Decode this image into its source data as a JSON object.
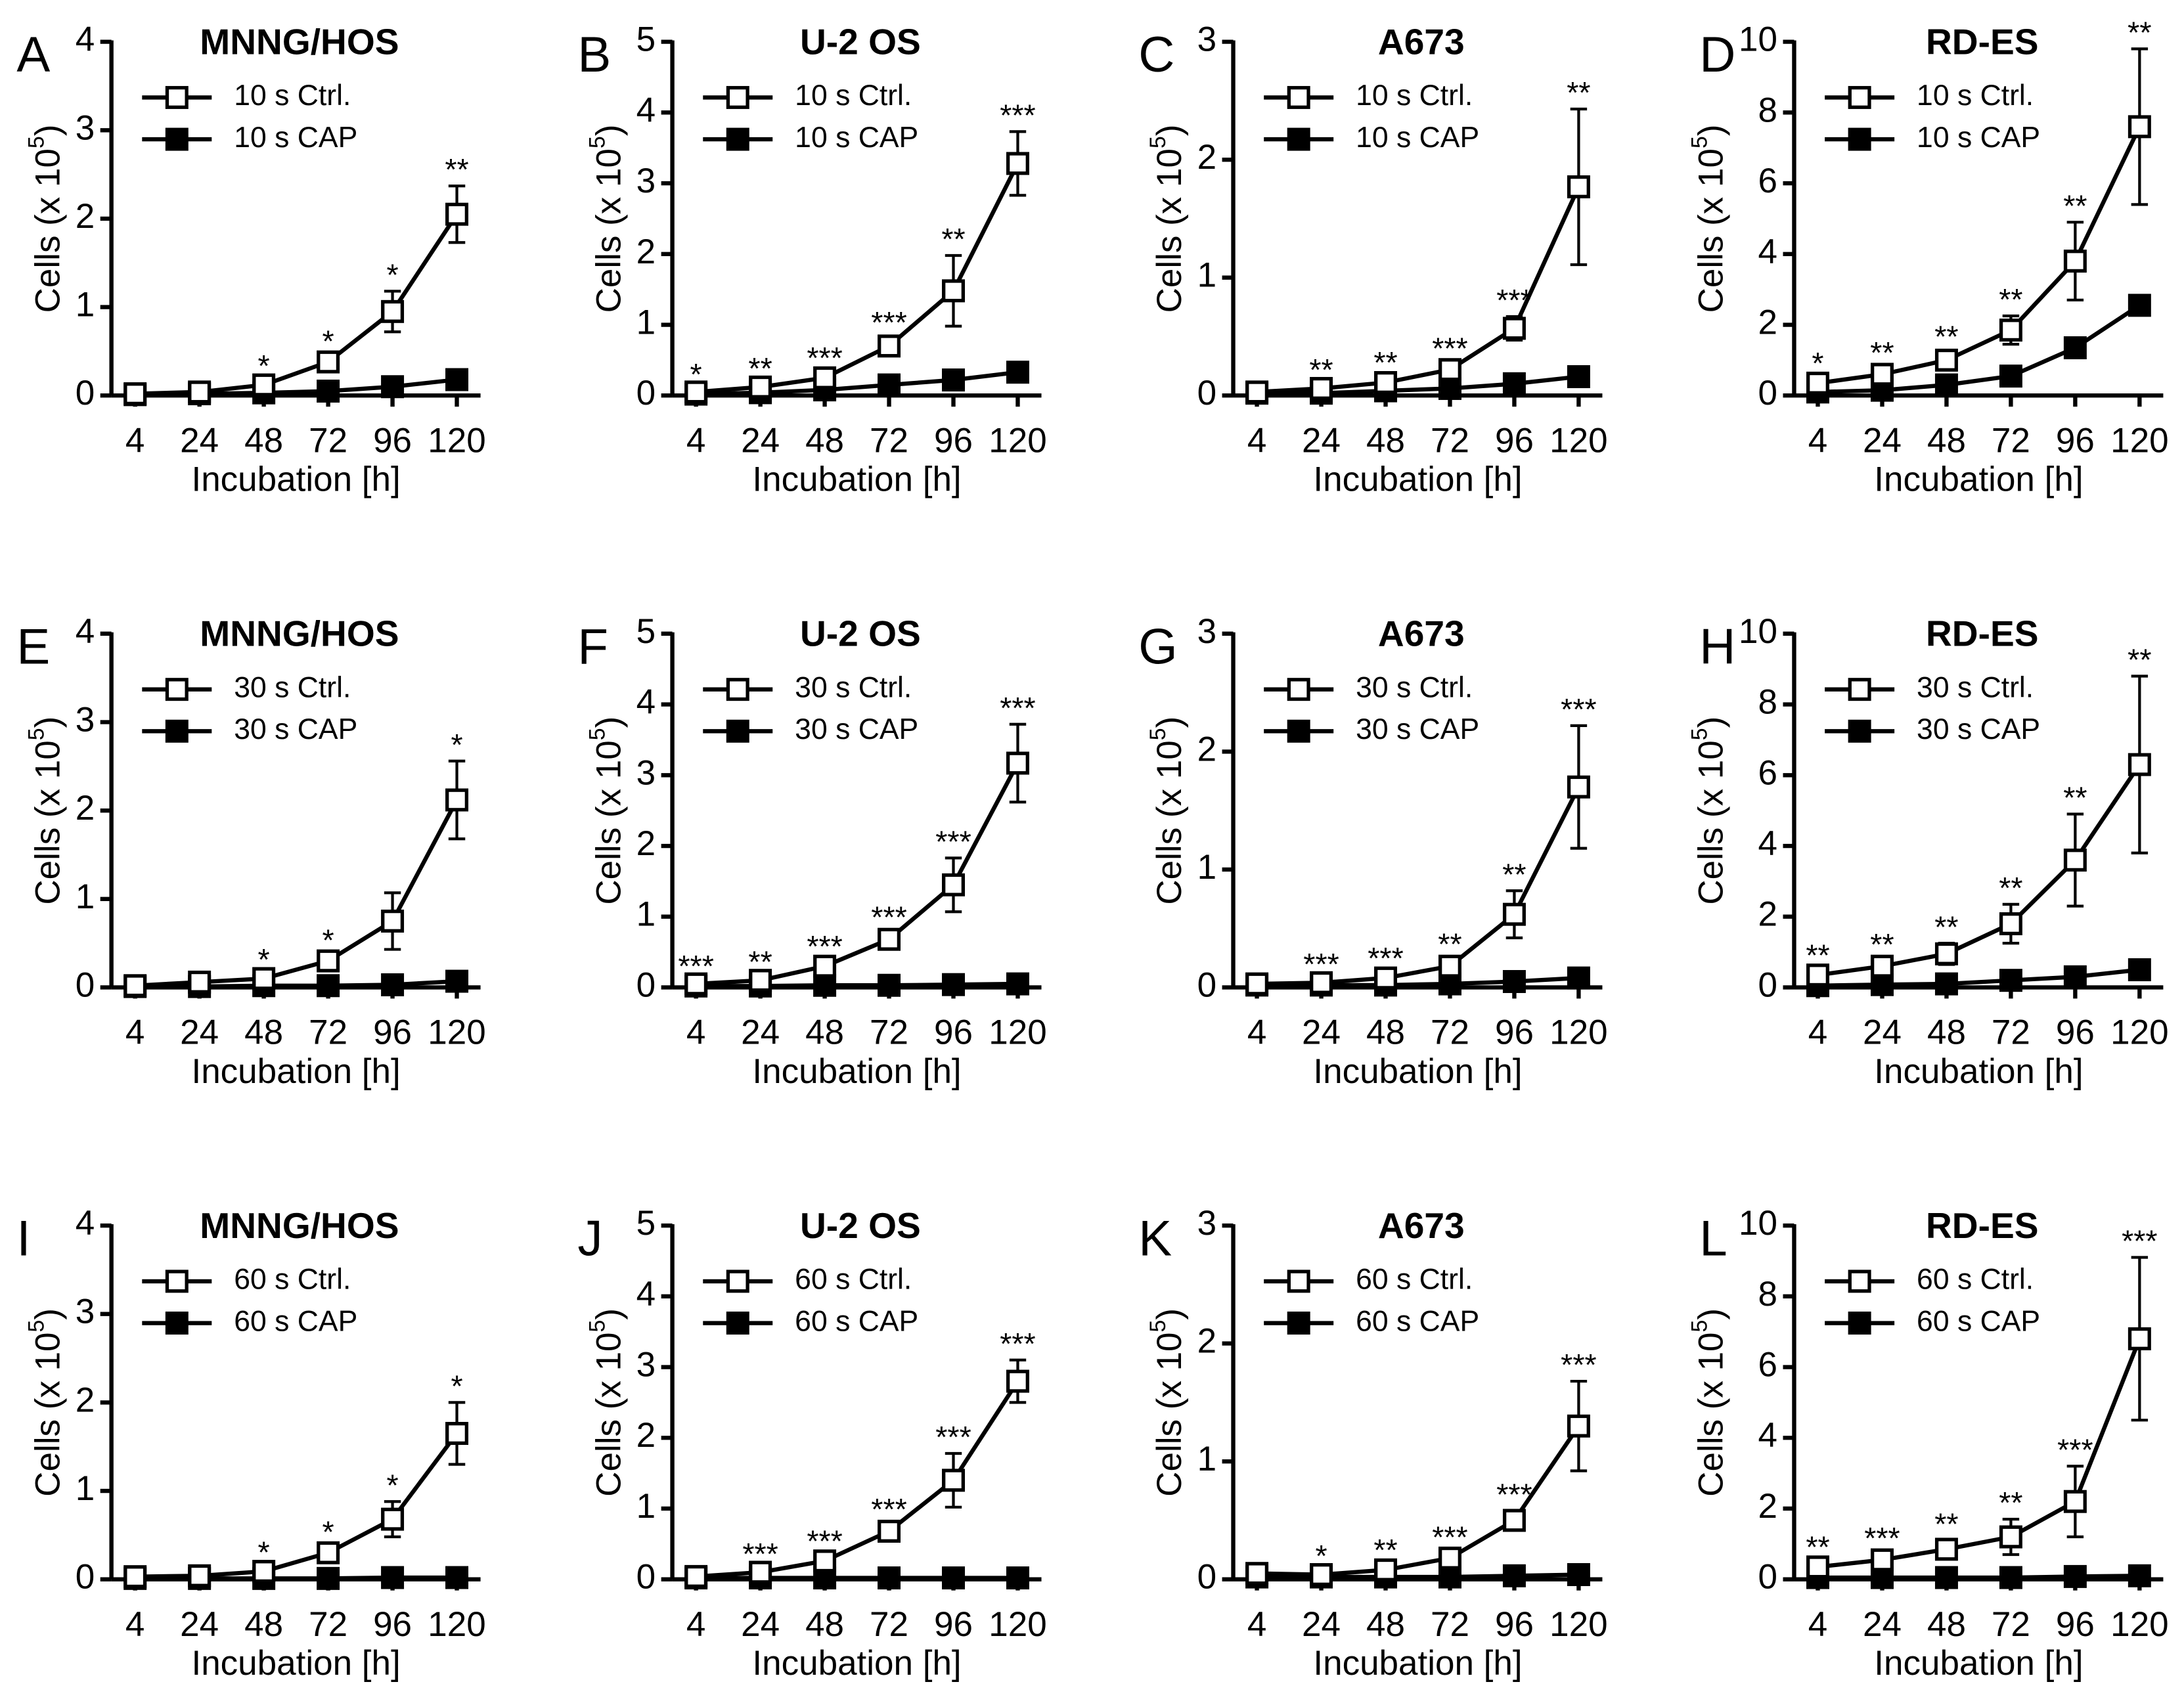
{
  "chart_data": [
    {
      "type": "line",
      "panel": "A",
      "title": "MNNG/HOS",
      "ylabel": [
        "Cells (x 10",
        "5",
        ")"
      ],
      "xlabel": "Incubation [h]",
      "categories": [
        "4",
        "24",
        "48",
        "72",
        "96",
        "120"
      ],
      "ylim": [
        0,
        4
      ],
      "yticks": [
        0,
        1,
        2,
        3,
        4
      ],
      "series": [
        {
          "name": "10 s Ctrl.",
          "color": "#000000",
          "marker_fill": "#ffffff",
          "values": [
            0.02,
            0.04,
            0.12,
            0.38,
            0.95,
            2.05
          ],
          "errors": [
            0.01,
            0.01,
            0.03,
            0.05,
            0.23,
            0.32
          ],
          "annotations": [
            null,
            null,
            "*",
            "*",
            "*",
            "**"
          ]
        },
        {
          "name": "10 s CAP",
          "color": "#000000",
          "marker_fill": "#000000",
          "values": [
            0.01,
            0.02,
            0.03,
            0.05,
            0.1,
            0.18
          ],
          "errors": [
            0.01,
            0.01,
            0.01,
            0.02,
            0.03,
            0.03
          ]
        }
      ]
    },
    {
      "type": "line",
      "panel": "B",
      "title": "U-2 OS",
      "ylabel": [
        "Cells (x 10",
        "5",
        ")"
      ],
      "xlabel": "Incubation [h]",
      "categories": [
        "4",
        "24",
        "48",
        "72",
        "96",
        "120"
      ],
      "ylim": [
        0,
        5
      ],
      "yticks": [
        0,
        1,
        2,
        3,
        4,
        5
      ],
      "series": [
        {
          "name": "10 s Ctrl.",
          "color": "#000000",
          "marker_fill": "#ffffff",
          "values": [
            0.05,
            0.12,
            0.25,
            0.7,
            1.48,
            3.28
          ],
          "errors": [
            0.02,
            0.03,
            0.05,
            0.1,
            0.5,
            0.45
          ],
          "annotations": [
            "*",
            "**",
            "***",
            "***",
            "**",
            "***"
          ]
        },
        {
          "name": "10 s CAP",
          "color": "#000000",
          "marker_fill": "#000000",
          "values": [
            0.02,
            0.04,
            0.08,
            0.15,
            0.22,
            0.33
          ],
          "errors": [
            0.01,
            0.01,
            0.02,
            0.03,
            0.04,
            0.08
          ]
        }
      ]
    },
    {
      "type": "line",
      "panel": "C",
      "title": "A673",
      "ylabel": [
        "Cells (x 10",
        "5",
        ")"
      ],
      "xlabel": "Incubation [h]",
      "categories": [
        "4",
        "24",
        "48",
        "72",
        "96",
        "120"
      ],
      "ylim": [
        0,
        3
      ],
      "yticks": [
        0,
        1,
        2,
        3
      ],
      "series": [
        {
          "name": "10 s Ctrl.",
          "color": "#000000",
          "marker_fill": "#ffffff",
          "values": [
            0.03,
            0.06,
            0.11,
            0.22,
            0.57,
            1.77
          ],
          "errors": [
            0.01,
            0.02,
            0.03,
            0.04,
            0.1,
            0.66
          ],
          "annotations": [
            null,
            "**",
            "**",
            "***",
            "***",
            "**"
          ]
        },
        {
          "name": "10 s CAP",
          "color": "#000000",
          "marker_fill": "#000000",
          "values": [
            0.02,
            0.02,
            0.04,
            0.06,
            0.1,
            0.16
          ],
          "errors": [
            0.01,
            0.01,
            0.01,
            0.02,
            0.02,
            0.03
          ]
        }
      ]
    },
    {
      "type": "line",
      "panel": "D",
      "title": "RD-ES",
      "ylabel": [
        "Cells (x 10",
        "5",
        ")"
      ],
      "xlabel": "Incubation [h]",
      "categories": [
        "4",
        "24",
        "48",
        "72",
        "96",
        "120"
      ],
      "ylim": [
        0,
        10
      ],
      "yticks": [
        0,
        2,
        4,
        6,
        8,
        10
      ],
      "series": [
        {
          "name": "10 s Ctrl.",
          "color": "#000000",
          "marker_fill": "#ffffff",
          "values": [
            0.35,
            0.6,
            1.0,
            1.85,
            3.8,
            7.6
          ],
          "errors": [
            0.1,
            0.15,
            0.2,
            0.4,
            1.1,
            2.2
          ],
          "annotations": [
            "*",
            "**",
            "**",
            "**",
            "**",
            "**"
          ]
        },
        {
          "name": "10 s CAP",
          "color": "#000000",
          "marker_fill": "#000000",
          "values": [
            0.1,
            0.15,
            0.3,
            0.55,
            1.35,
            2.55
          ],
          "errors": [
            0.02,
            0.03,
            0.05,
            0.08,
            0.15,
            0.15
          ]
        }
      ]
    },
    {
      "type": "line",
      "panel": "E",
      "title": "MNNG/HOS",
      "ylabel": [
        "Cells (x 10",
        "5",
        ")"
      ],
      "xlabel": "Incubation [h]",
      "categories": [
        "4",
        "24",
        "48",
        "72",
        "96",
        "120"
      ],
      "ylim": [
        0,
        4
      ],
      "yticks": [
        0,
        1,
        2,
        3,
        4
      ],
      "series": [
        {
          "name": "30 s Ctrl.",
          "color": "#000000",
          "marker_fill": "#ffffff",
          "values": [
            0.02,
            0.06,
            0.1,
            0.3,
            0.75,
            2.12
          ],
          "errors": [
            0.01,
            0.02,
            0.03,
            0.05,
            0.32,
            0.44
          ],
          "annotations": [
            null,
            null,
            "*",
            "*",
            null,
            "*"
          ]
        },
        {
          "name": "30 s CAP",
          "color": "#000000",
          "marker_fill": "#000000",
          "values": [
            0.01,
            0.01,
            0.02,
            0.02,
            0.03,
            0.07
          ],
          "errors": [
            0.01,
            0.01,
            0.01,
            0.01,
            0.01,
            0.02
          ]
        }
      ]
    },
    {
      "type": "line",
      "panel": "F",
      "title": "U-2 OS",
      "ylabel": [
        "Cells (x 10",
        "5",
        ")"
      ],
      "xlabel": "Incubation [h]",
      "categories": [
        "4",
        "24",
        "48",
        "72",
        "96",
        "120"
      ],
      "ylim": [
        0,
        5
      ],
      "yticks": [
        0,
        1,
        2,
        3,
        4,
        5
      ],
      "series": [
        {
          "name": "30 s Ctrl.",
          "color": "#000000",
          "marker_fill": "#ffffff",
          "values": [
            0.05,
            0.1,
            0.3,
            0.68,
            1.45,
            3.17
          ],
          "errors": [
            0.02,
            0.03,
            0.05,
            0.08,
            0.38,
            0.55
          ],
          "annotations": [
            "***",
            "**",
            "***",
            "***",
            "***",
            "***"
          ]
        },
        {
          "name": "30 s CAP",
          "color": "#000000",
          "marker_fill": "#000000",
          "values": [
            0.02,
            0.02,
            0.03,
            0.03,
            0.04,
            0.05
          ],
          "errors": [
            0.01,
            0.01,
            0.01,
            0.01,
            0.01,
            0.01
          ]
        }
      ]
    },
    {
      "type": "line",
      "panel": "G",
      "title": "A673",
      "ylabel": [
        "Cells (x 10",
        "5",
        ")"
      ],
      "xlabel": "Incubation [h]",
      "categories": [
        "4",
        "24",
        "48",
        "72",
        "96",
        "120"
      ],
      "ylim": [
        0,
        3
      ],
      "yticks": [
        0,
        1,
        2,
        3
      ],
      "series": [
        {
          "name": "30 s Ctrl.",
          "color": "#000000",
          "marker_fill": "#ffffff",
          "values": [
            0.03,
            0.04,
            0.08,
            0.18,
            0.62,
            1.7
          ],
          "errors": [
            0.01,
            0.02,
            0.03,
            0.05,
            0.2,
            0.52
          ],
          "annotations": [
            null,
            "***",
            "***",
            "**",
            "**",
            "***"
          ]
        },
        {
          "name": "30 s CAP",
          "color": "#000000",
          "marker_fill": "#000000",
          "values": [
            0.02,
            0.02,
            0.02,
            0.03,
            0.05,
            0.08
          ],
          "errors": [
            0.01,
            0.01,
            0.01,
            0.01,
            0.01,
            0.02
          ]
        }
      ]
    },
    {
      "type": "line",
      "panel": "H",
      "title": "RD-ES",
      "ylabel": [
        "Cells (x 10",
        "5",
        ")"
      ],
      "xlabel": "Incubation [h]",
      "categories": [
        "4",
        "24",
        "48",
        "72",
        "96",
        "120"
      ],
      "ylim": [
        0,
        10
      ],
      "yticks": [
        0,
        2,
        4,
        6,
        8,
        10
      ],
      "series": [
        {
          "name": "30 s Ctrl.",
          "color": "#000000",
          "marker_fill": "#ffffff",
          "values": [
            0.35,
            0.6,
            0.95,
            1.8,
            3.6,
            6.3
          ],
          "errors": [
            0.1,
            0.15,
            0.3,
            0.55,
            1.3,
            2.5
          ],
          "annotations": [
            "**",
            "**",
            "**",
            "**",
            "**",
            "**"
          ]
        },
        {
          "name": "30 s CAP",
          "color": "#000000",
          "marker_fill": "#000000",
          "values": [
            0.05,
            0.08,
            0.1,
            0.2,
            0.3,
            0.5
          ],
          "errors": [
            0.02,
            0.02,
            0.03,
            0.04,
            0.05,
            0.08
          ]
        }
      ]
    },
    {
      "type": "line",
      "panel": "I",
      "title": "MNNG/HOS",
      "ylabel": [
        "Cells (x 10",
        "5",
        ")"
      ],
      "xlabel": "Incubation [h]",
      "categories": [
        "4",
        "24",
        "48",
        "72",
        "96",
        "120"
      ],
      "ylim": [
        0,
        4
      ],
      "yticks": [
        0,
        1,
        2,
        3,
        4
      ],
      "series": [
        {
          "name": "60 s Ctrl.",
          "color": "#000000",
          "marker_fill": "#ffffff",
          "values": [
            0.03,
            0.04,
            0.09,
            0.3,
            0.68,
            1.65
          ],
          "errors": [
            0.01,
            0.01,
            0.03,
            0.05,
            0.2,
            0.35
          ],
          "annotations": [
            null,
            null,
            "*",
            "*",
            "*",
            "*"
          ]
        },
        {
          "name": "60 s CAP",
          "color": "#000000",
          "marker_fill": "#000000",
          "values": [
            0.01,
            0.01,
            0.01,
            0.01,
            0.02,
            0.02
          ],
          "errors": [
            0.01,
            0.01,
            0.01,
            0.01,
            0.01,
            0.01
          ]
        }
      ]
    },
    {
      "type": "line",
      "panel": "J",
      "title": "U-2 OS",
      "ylabel": [
        "Cells (x 10",
        "5",
        ")"
      ],
      "xlabel": "Incubation [h]",
      "categories": [
        "4",
        "24",
        "48",
        "72",
        "96",
        "120"
      ],
      "ylim": [
        0,
        5
      ],
      "yticks": [
        0,
        1,
        2,
        3,
        4,
        5
      ],
      "series": [
        {
          "name": "60 s Ctrl.",
          "color": "#000000",
          "marker_fill": "#ffffff",
          "values": [
            0.04,
            0.1,
            0.26,
            0.68,
            1.4,
            2.8
          ],
          "errors": [
            0.01,
            0.03,
            0.05,
            0.08,
            0.38,
            0.3
          ],
          "annotations": [
            null,
            "***",
            "***",
            "***",
            "***",
            "***"
          ]
        },
        {
          "name": "60 s CAP",
          "color": "#000000",
          "marker_fill": "#000000",
          "values": [
            0.02,
            0.02,
            0.02,
            0.02,
            0.02,
            0.02
          ],
          "errors": [
            0.01,
            0.01,
            0.01,
            0.01,
            0.01,
            0.01
          ]
        }
      ]
    },
    {
      "type": "line",
      "panel": "K",
      "title": "A673",
      "ylabel": [
        "Cells (x 10",
        "5",
        ")"
      ],
      "xlabel": "Incubation [h]",
      "categories": [
        "4",
        "24",
        "48",
        "72",
        "96",
        "120"
      ],
      "ylim": [
        0,
        3
      ],
      "yticks": [
        0,
        1,
        2,
        3
      ],
      "series": [
        {
          "name": "60 s Ctrl.",
          "color": "#000000",
          "marker_fill": "#ffffff",
          "values": [
            0.05,
            0.04,
            0.08,
            0.18,
            0.5,
            1.3
          ],
          "errors": [
            0.01,
            0.02,
            0.03,
            0.04,
            0.08,
            0.38
          ],
          "annotations": [
            null,
            "*",
            "**",
            "***",
            "***",
            "***"
          ]
        },
        {
          "name": "60 s CAP",
          "color": "#000000",
          "marker_fill": "#000000",
          "values": [
            0.02,
            0.02,
            0.02,
            0.02,
            0.03,
            0.04
          ],
          "errors": [
            0.01,
            0.01,
            0.01,
            0.01,
            0.01,
            0.01
          ]
        }
      ]
    },
    {
      "type": "line",
      "panel": "L",
      "title": "RD-ES",
      "ylabel": [
        "Cells (x 10",
        "5",
        ")"
      ],
      "xlabel": "Incubation [h]",
      "categories": [
        "4",
        "24",
        "48",
        "72",
        "96",
        "120"
      ],
      "ylim": [
        0,
        10
      ],
      "yticks": [
        0,
        2,
        4,
        6,
        8,
        10
      ],
      "series": [
        {
          "name": "60 s Ctrl.",
          "color": "#000000",
          "marker_fill": "#ffffff",
          "values": [
            0.35,
            0.55,
            0.85,
            1.2,
            2.2,
            6.8
          ],
          "errors": [
            0.1,
            0.15,
            0.25,
            0.5,
            1.0,
            2.3
          ],
          "annotations": [
            "**",
            "***",
            "**",
            "**",
            "***",
            "***"
          ]
        },
        {
          "name": "60 s CAP",
          "color": "#000000",
          "marker_fill": "#000000",
          "values": [
            0.05,
            0.05,
            0.05,
            0.05,
            0.08,
            0.1
          ],
          "errors": [
            0.01,
            0.01,
            0.01,
            0.01,
            0.02,
            0.02
          ]
        }
      ]
    }
  ]
}
